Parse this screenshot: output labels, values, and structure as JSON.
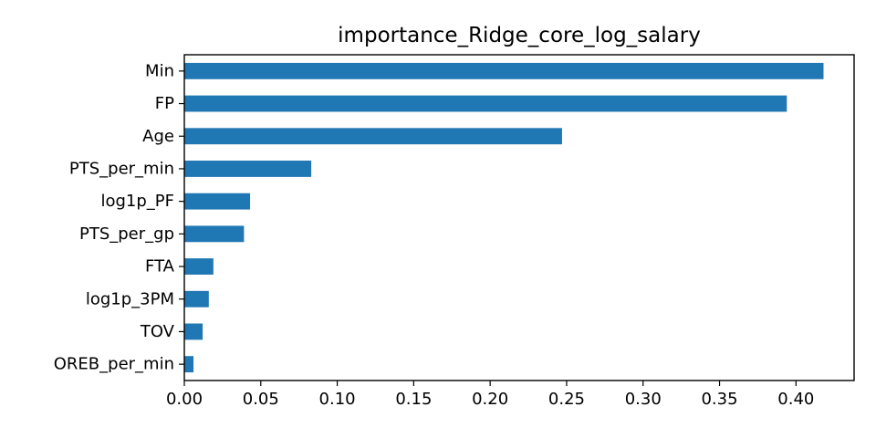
{
  "chart_data": {
    "type": "bar",
    "orientation": "horizontal",
    "title": "importance_Ridge_core_log_salary",
    "xlabel": "",
    "ylabel": "",
    "categories": [
      "Min",
      "FP",
      "Age",
      "PTS_per_min",
      "log1p_PF",
      "PTS_per_gp",
      "FTA",
      "log1p_3PM",
      "TOV",
      "OREB_per_min"
    ],
    "values": [
      0.418,
      0.394,
      0.247,
      0.083,
      0.043,
      0.039,
      0.019,
      0.016,
      0.012,
      0.006
    ],
    "xlim": [
      0.0,
      0.438
    ],
    "xticks": [
      "0.00",
      "0.05",
      "0.10",
      "0.15",
      "0.20",
      "0.25",
      "0.30",
      "0.35",
      "0.40"
    ],
    "grid": false,
    "legend": "none",
    "bar_color": "#1f77b4"
  }
}
